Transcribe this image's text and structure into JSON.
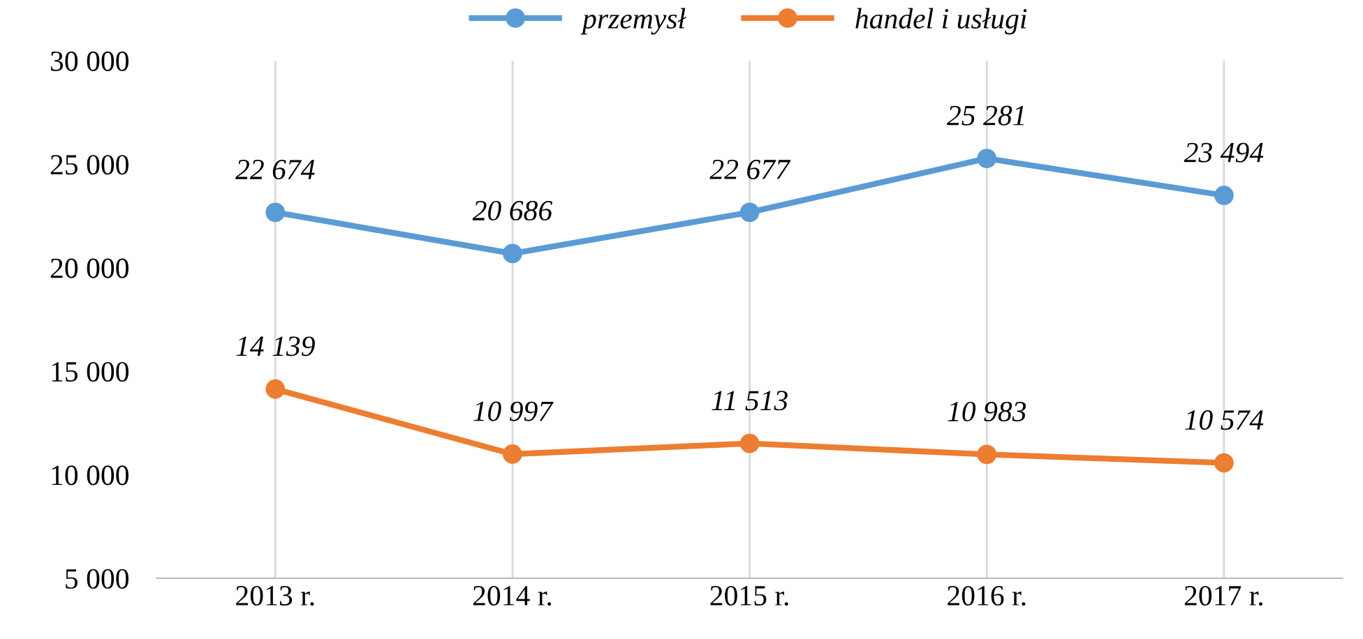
{
  "chart_data": {
    "type": "line",
    "categories": [
      "2013 r.",
      "2014 r.",
      "2015 r.",
      "2016 r.",
      "2017 r."
    ],
    "series": [
      {
        "name": "przemysł",
        "color": "#5b9bd5",
        "values": [
          22674,
          20686,
          22677,
          25281,
          23494
        ],
        "value_labels": [
          "22 674",
          "20 686",
          "22 677",
          "25 281",
          "23 494"
        ]
      },
      {
        "name": "handel i usługi",
        "color": "#ed7d31",
        "values": [
          14139,
          10997,
          11513,
          10983,
          10574
        ],
        "value_labels": [
          "14 139",
          "10 997",
          "11 513",
          "10 983",
          "10 574"
        ]
      }
    ],
    "ylim": [
      5000,
      30000
    ],
    "yticks": [
      {
        "value": 5000,
        "label": "5 000"
      },
      {
        "value": 10000,
        "label": "10 000"
      },
      {
        "value": 15000,
        "label": "15 000"
      },
      {
        "value": 20000,
        "label": "20 000"
      },
      {
        "value": 25000,
        "label": "25 000"
      },
      {
        "value": 30000,
        "label": "30 000"
      }
    ],
    "grid": "x",
    "legend": "top",
    "marker": "circle",
    "line_style": "solid"
  }
}
